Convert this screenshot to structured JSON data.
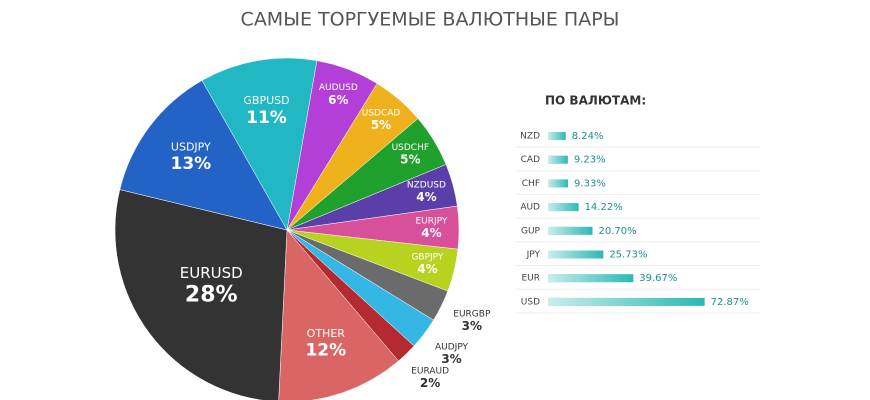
{
  "chart_data": [
    {
      "type": "pie",
      "title": "САМЫЕ ТОРГУЕМЫЕ ВАЛЮТНЫЕ ПАРЫ",
      "categories": [
        "AUDUSD",
        "USDCAD",
        "USDCHF",
        "NZDUSD",
        "EURJPY",
        "GBPJPY",
        "EURGBP",
        "AUDJPY",
        "EURAUD",
        "OTHER",
        "EURUSD",
        "USDJPY",
        "GBPUSD"
      ],
      "values": [
        6,
        5,
        5,
        4,
        4,
        4,
        3,
        3,
        2,
        12,
        28,
        13,
        11
      ],
      "value_labels": [
        "6%",
        "5%",
        "5%",
        "4%",
        "4%",
        "4%",
        "3%",
        "3%",
        "2%",
        "12%",
        "28%",
        "13%",
        "11%"
      ],
      "colors": [
        "#b33fd8",
        "#f0b21c",
        "#20a02c",
        "#5b3fa8",
        "#d9509a",
        "#b7d21f",
        "#6b6b6b",
        "#35b7e6",
        "#b52a30",
        "#d96664",
        "#333333",
        "#2463c6",
        "#21b8c4"
      ]
    },
    {
      "type": "hbar",
      "title": "ПО ВАЛЮТАМ:",
      "categories": [
        "NZD",
        "CAD",
        "CHF",
        "AUD",
        "GUP",
        "JPY",
        "EUR",
        "USD"
      ],
      "values": [
        8.24,
        9.23,
        9.33,
        14.22,
        20.7,
        25.73,
        39.67,
        72.87
      ],
      "value_labels": [
        "8.24%",
        "9.23%",
        "9.33%",
        "14.22%",
        "20.70%",
        "25.73%",
        "39.67%",
        "72.87%"
      ],
      "color": "#2bb8b4"
    }
  ]
}
